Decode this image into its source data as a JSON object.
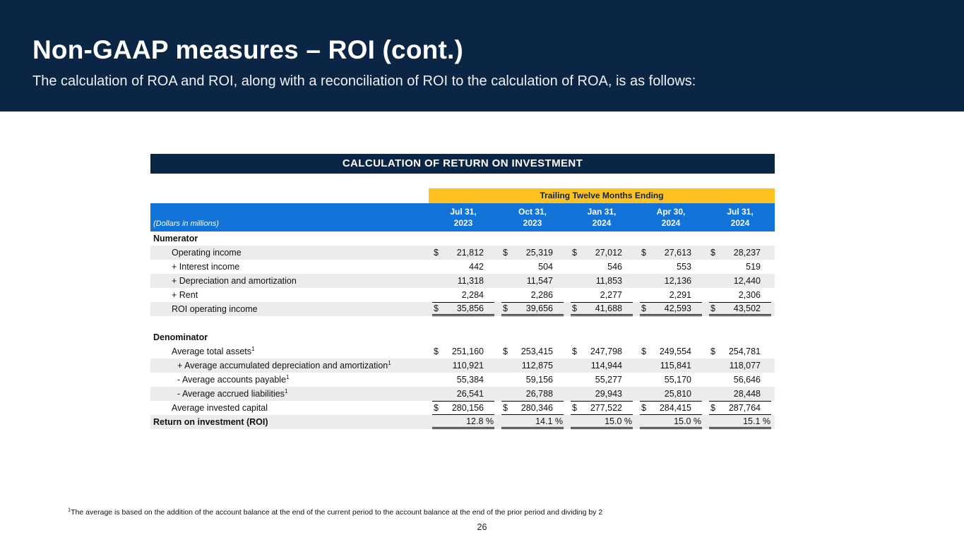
{
  "colors": {
    "navy": "#0b2545",
    "yellow": "#ffc220",
    "blue": "#1273d9",
    "row_shade": "#ececec"
  },
  "slide": {
    "title": "Non-GAAP measures – ROI (cont.)",
    "subtitle": "The calculation of ROA and ROI, along with a reconciliation of ROI to the calculation of ROA, is as follows:",
    "footnote_sup": "1",
    "footnote": "The average is based on the addition of the account balance at the end of the current period to the account balance at the end of the prior period and dividing by 2",
    "page_number": "26"
  },
  "table": {
    "title": "CALCULATION OF RETURN ON INVESTMENT",
    "band_label": "Trailing Twelve Months Ending",
    "units_label": "(Dollars in millions)",
    "columns": [
      {
        "line1": "Jul 31,",
        "line2": "2023"
      },
      {
        "line1": "Oct 31,",
        "line2": "2023"
      },
      {
        "line1": "Jan 31,",
        "line2": "2024"
      },
      {
        "line1": "Apr 30,",
        "line2": "2024"
      },
      {
        "line1": "Jul 31,",
        "line2": "2024"
      }
    ],
    "rows": [
      {
        "label": "Numerator",
        "indent": 0,
        "bold": true,
        "values": [
          "",
          "",
          "",
          "",
          ""
        ]
      },
      {
        "label": "Operating income",
        "indent": 1,
        "dollar": true,
        "shade": true,
        "values": [
          "21,812",
          "25,319",
          "27,012",
          "27,613",
          "28,237"
        ]
      },
      {
        "label": "+ Interest income",
        "indent": 1,
        "values": [
          "442",
          "504",
          "546",
          "553",
          "519"
        ]
      },
      {
        "label": "+ Depreciation and amortization",
        "indent": 1,
        "shade": true,
        "values": [
          "11,318",
          "11,547",
          "11,853",
          "12,136",
          "12,440"
        ]
      },
      {
        "label": "+ Rent",
        "indent": 1,
        "values": [
          "2,284",
          "2,286",
          "2,277",
          "2,291",
          "2,306"
        ]
      },
      {
        "label": "ROI operating income",
        "indent": 1,
        "dollar": true,
        "shade": true,
        "border": "sub",
        "values": [
          "35,856",
          "39,656",
          "41,688",
          "42,593",
          "43,502"
        ]
      },
      {
        "spacer": true
      },
      {
        "label": "Denominator",
        "indent": 0,
        "bold": true,
        "values": [
          "",
          "",
          "",
          "",
          ""
        ]
      },
      {
        "label": "Average total assets",
        "sup": "1",
        "indent": 1,
        "dollar": true,
        "values": [
          "251,160",
          "253,415",
          "247,798",
          "249,554",
          "254,781"
        ]
      },
      {
        "label": "+ Average accumulated depreciation and amortization",
        "sup": "1",
        "indent": 2,
        "shade": true,
        "values": [
          "110,921",
          "112,875",
          "114,944",
          "115,841",
          "118,077"
        ]
      },
      {
        "label": "- Average accounts payable",
        "sup": "1",
        "indent": 2,
        "values": [
          "55,384",
          "59,156",
          "55,277",
          "55,170",
          "56,646"
        ]
      },
      {
        "label": "- Average accrued liabilities",
        "sup": "1",
        "indent": 2,
        "shade": true,
        "values": [
          "26,541",
          "26,788",
          "29,943",
          "25,810",
          "28,448"
        ]
      },
      {
        "label": "Average invested capital",
        "indent": 1,
        "dollar": true,
        "border": "tot",
        "values": [
          "280,156",
          "280,346",
          "277,522",
          "284,415",
          "287,764"
        ]
      },
      {
        "label": "Return on investment (ROI)",
        "indent": 0,
        "bold": true,
        "shade": true,
        "border": "fin",
        "values": [
          "12.8 %",
          "14.1 %",
          "15.0 %",
          "15.0 %",
          "15.1 %"
        ]
      }
    ]
  }
}
